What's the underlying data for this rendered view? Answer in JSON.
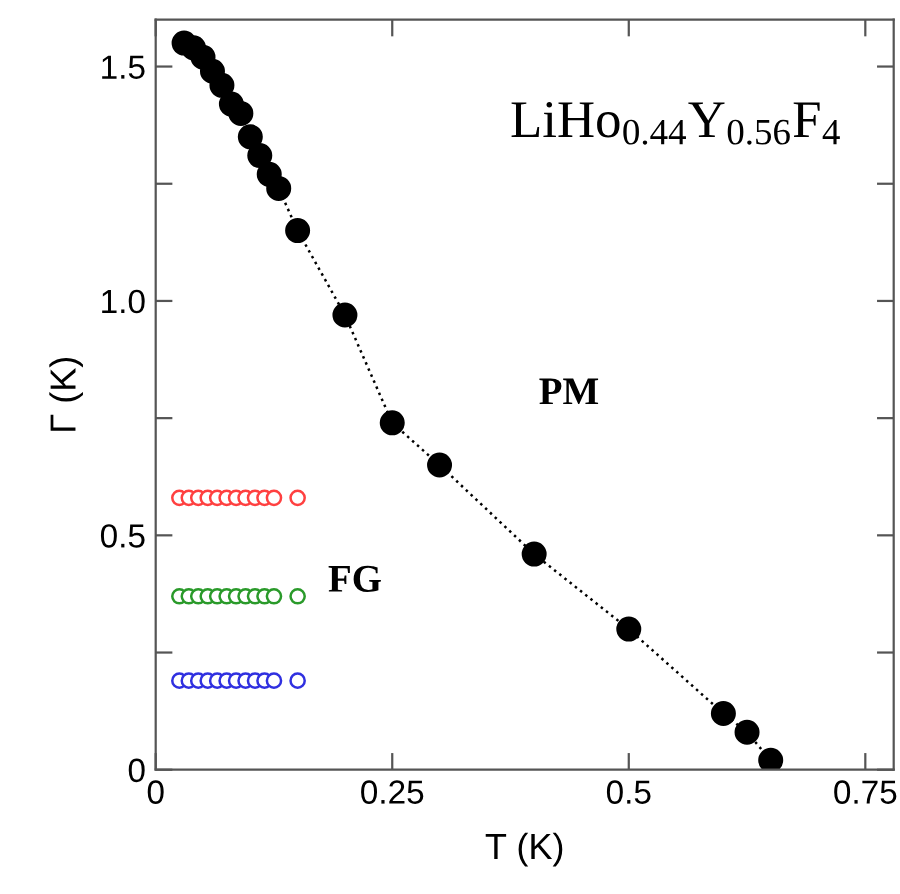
{
  "chart_data": {
    "type": "scatter",
    "xlabel": "T (K)",
    "ylabel": "Γ (K)",
    "annotations": [
      "LiHo$_{0.44}$Y$_{0.56}$F$_{4}$",
      "PM",
      "FG"
    ],
    "xlim": [
      0,
      0.78
    ],
    "ylim": [
      0,
      1.6
    ],
    "xticks": [
      0,
      0.25,
      0.5,
      0.75
    ],
    "yticks": [
      0,
      {
        "value": 0.25,
        "label": null
      },
      0.5,
      {
        "value": 0.75,
        "label": null
      },
      {
        "value": 1.0,
        "label": "1.0"
      },
      {
        "value": 1.25,
        "label": null
      },
      1.5
    ],
    "grid": false,
    "legend": false,
    "marker": "circle",
    "series": [
      {
        "type": "line",
        "line_style": "dotted",
        "color": "#000000",
        "x": [
          0.03,
          0.04,
          0.05,
          0.06,
          0.07,
          0.08,
          0.09,
          0.1,
          0.11,
          0.12,
          0.13,
          0.15,
          0.2,
          0.25,
          0.3,
          0.4,
          0.5,
          0.6,
          0.625,
          0.65
        ],
        "values": [
          1.55,
          1.54,
          1.52,
          1.49,
          1.46,
          1.42,
          1.4,
          1.35,
          1.31,
          1.27,
          1.24,
          1.15,
          0.97,
          0.74,
          0.65,
          0.46,
          0.3,
          0.12,
          0.08,
          0.02
        ]
      },
      {
        "color": "#ff4040",
        "x": [
          0.025,
          0.035,
          0.045,
          0.055,
          0.065,
          0.075,
          0.085,
          0.095,
          0.105,
          0.115,
          0.125,
          0.15
        ],
        "values": [
          0.58,
          0.58,
          0.58,
          0.58,
          0.58,
          0.58,
          0.58,
          0.58,
          0.58,
          0.58,
          0.58,
          0.58
        ]
      },
      {
        "color": "#2a9a2a",
        "x": [
          0.025,
          0.035,
          0.045,
          0.055,
          0.065,
          0.075,
          0.085,
          0.095,
          0.105,
          0.115,
          0.125,
          0.15
        ],
        "values": [
          0.37,
          0.37,
          0.37,
          0.37,
          0.37,
          0.37,
          0.37,
          0.37,
          0.37,
          0.37,
          0.37,
          0.37
        ]
      },
      {
        "color": "#3030e0",
        "x": [
          0.025,
          0.035,
          0.045,
          0.055,
          0.065,
          0.075,
          0.085,
          0.095,
          0.105,
          0.115,
          0.125,
          0.15
        ],
        "values": [
          0.19,
          0.19,
          0.19,
          0.19,
          0.19,
          0.19,
          0.19,
          0.19,
          0.19,
          0.19,
          0.19,
          0.19
        ]
      }
    ]
  }
}
